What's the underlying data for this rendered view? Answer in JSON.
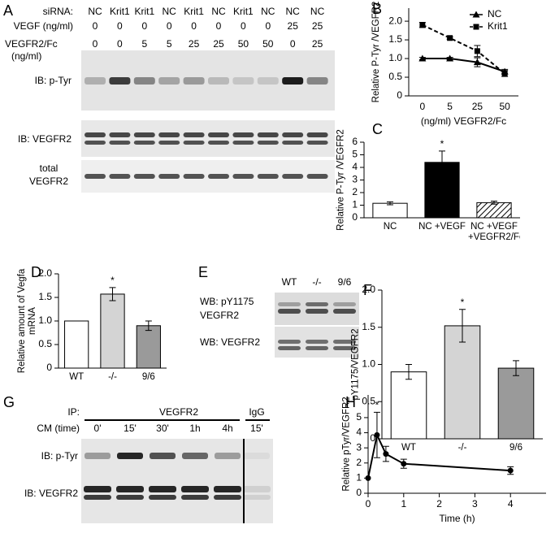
{
  "chart_data": [
    {
      "panel": "B",
      "type": "line",
      "xlabel": "(ng/ml) VEGFR2/Fc",
      "ylabel": "Relative P-Tyr /VEGFR2",
      "categories": [
        "0",
        "5",
        "25",
        "50"
      ],
      "series": [
        {
          "name": "NC",
          "color": "#000000",
          "marker": "triangle",
          "dashed": false,
          "values": [
            1.0,
            1.0,
            0.9,
            0.65
          ],
          "errors": [
            0.03,
            0.03,
            0.12,
            0.06
          ]
        },
        {
          "name": "Krit1",
          "color": "#000000",
          "marker": "square",
          "dashed": true,
          "values": [
            1.9,
            1.55,
            1.2,
            0.6
          ],
          "errors": [
            0.07,
            0.03,
            0.15,
            0.08
          ]
        }
      ],
      "ylim": [
        0,
        2.35
      ],
      "yticks": [
        0,
        0.5,
        {
          "value": 1,
          "label": "1.0"
        },
        1.5,
        {
          "value": 2,
          "label": "2.0"
        }
      ],
      "legend": "top-right"
    },
    {
      "panel": "C",
      "type": "bar",
      "ylabel": "Relative P-Tyr /VEGFR2",
      "categories": [
        "NC",
        "NC +VEGF",
        "NC +VEGF +VEGFR2/Fc"
      ],
      "values": [
        1.15,
        4.4,
        1.2
      ],
      "errors": [
        0.12,
        0.9,
        0.12
      ],
      "colors": [
        "#ffffff",
        "#000000",
        "#ffffff"
      ],
      "hatched": [
        false,
        false,
        true
      ],
      "star": "*",
      "ylim": [
        0,
        6
      ],
      "yticks": [
        0,
        1,
        2,
        3,
        4,
        5,
        6
      ]
    },
    {
      "panel": "D",
      "type": "bar",
      "ylabel": "Relative amount of Vegfa mRNA",
      "categories": [
        "WT",
        "-/-",
        "9/6"
      ],
      "values": [
        1.0,
        1.57,
        0.9
      ],
      "errors": [
        0,
        0.14,
        0.1
      ],
      "colors": [
        "#ffffff",
        "#d4d4d4",
        "#9a9a9a"
      ],
      "hatched": [
        false,
        false,
        false
      ],
      "star": "*",
      "ylim": [
        0,
        2
      ],
      "yticks": [
        0,
        0.5,
        {
          "value": 1,
          "label": "1.0"
        },
        1.5,
        {
          "value": 2,
          "label": "2.0"
        }
      ]
    },
    {
      "panel": "F",
      "type": "bar",
      "ylabel": "pY1175/VEGFR2",
      "categories": [
        "WT",
        "-/-",
        "9/6"
      ],
      "values": [
        0.9,
        1.52,
        0.95
      ],
      "errors": [
        0.1,
        0.22,
        0.1
      ],
      "colors": [
        "#ffffff",
        "#d4d4d4",
        "#9a9a9a"
      ],
      "hatched": [
        false,
        false,
        false
      ],
      "star": "*",
      "ylim": [
        0,
        2
      ],
      "yticks": [
        0,
        0.5,
        {
          "value": 1,
          "label": "1.0"
        },
        1.5,
        {
          "value": 2,
          "label": "2.0"
        }
      ]
    },
    {
      "panel": "H",
      "type": "line",
      "xlabel": "Time (h)",
      "ylabel": "Relative pTyr/VEGFR2",
      "x": [
        0,
        0.25,
        0.5,
        1,
        4
      ],
      "xlim": [
        0,
        5
      ],
      "xticks": [
        0,
        1,
        2,
        3,
        4
      ],
      "series": [
        {
          "name": null,
          "color": "#000000",
          "marker": "circle",
          "dashed": false,
          "values": [
            1,
            3.85,
            2.6,
            1.95,
            1.5
          ],
          "errors": [
            null,
            1.5,
            0.5,
            0.3,
            0.25
          ]
        }
      ],
      "star": "*",
      "ylim": [
        0,
        6.5
      ],
      "yticks": [
        0,
        1,
        2,
        3,
        4,
        5
      ]
    }
  ],
  "blot_a": {
    "panel": "A",
    "row_labels": [
      "siRNA:",
      "VEGF (ng/ml)",
      "VEGFR2/Fc",
      "(ng/ml)"
    ],
    "sirna": [
      "NC",
      "Krit1",
      "Krit1",
      "NC",
      "Krit1",
      "NC",
      "Krit1",
      "NC",
      "NC",
      "NC"
    ],
    "vegf": [
      "0",
      "0",
      "0",
      "0",
      "0",
      "0",
      "0",
      "0",
      "25",
      "25"
    ],
    "fc": [
      "0",
      "0",
      "5",
      "5",
      "25",
      "25",
      "50",
      "50",
      "0",
      "25"
    ],
    "ib_ptyr": "IB: p-Tyr",
    "ib_vegfr2": "IB: VEGFR2",
    "total": [
      "total",
      "VEGFR2"
    ]
  },
  "blot_e": {
    "panel": "E",
    "lanes": [
      "WT",
      "-/-",
      "9/6"
    ],
    "wb_py": [
      "WB: pY1175",
      "VEGFR2"
    ],
    "wb_vegfr2": "WB: VEGFR2"
  },
  "blot_g": {
    "panel": "G",
    "ip": "IP:",
    "ip_target": "VEGFR2",
    "igg": "IgG",
    "cm": "CM (time)",
    "lanes": [
      "0'",
      "15'",
      "30'",
      "1h",
      "4h",
      "15'"
    ],
    "ib_ptyr": "IB: p-Tyr",
    "ib_vegfr2": "IB: VEGFR2"
  }
}
